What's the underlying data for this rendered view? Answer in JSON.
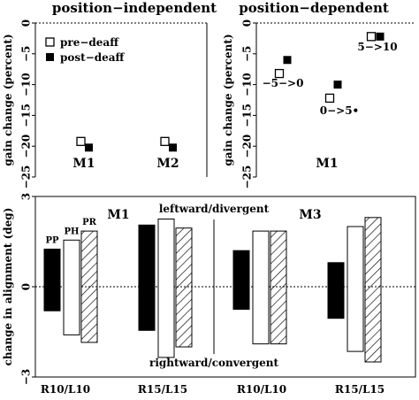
{
  "chart_data": [
    {
      "type": "scatter",
      "title": "position−independent",
      "ylabel": "gain change (percent)",
      "ylim": [
        -25,
        0
      ],
      "yticks": [
        0,
        -5,
        -10,
        -15,
        -20,
        -25
      ],
      "legend": {
        "placement": "top-left",
        "entries": [
          {
            "label": "pre−deaff",
            "marker": "open-square"
          },
          {
            "label": "post−deaff",
            "marker": "filled-square"
          }
        ]
      },
      "groups": [
        {
          "label": "M1",
          "pre": -19.3,
          "post": -20.3
        },
        {
          "label": "M2",
          "pre": -19.3,
          "post": -20.3
        }
      ]
    },
    {
      "type": "scatter",
      "title": "position−dependent",
      "ylabel": "gain change (percent)",
      "ylim": [
        -25,
        0
      ],
      "yticks": [
        0,
        -5,
        -10,
        -15,
        -20,
        -25
      ],
      "subject_label": "M1",
      "points": [
        {
          "label": "−5−>0",
          "pre": -8.2,
          "post": -6.0
        },
        {
          "label": "0−>5•",
          "pre": -12.2,
          "post": -10.0
        },
        {
          "label": "5−>10",
          "pre": -2.2,
          "post": -2.2
        }
      ]
    },
    {
      "type": "bar",
      "ylabel": "change in alignment (deg)",
      "ylim": [
        -3,
        3
      ],
      "yticks": [
        3,
        0,
        -3
      ],
      "categories": [
        "R10/L10",
        "R15/L15",
        "R10/L10",
        "R15/L15"
      ],
      "subjects": [
        "M1",
        "M3"
      ],
      "series": [
        {
          "name": "PP",
          "fill": "solid",
          "ranges": [
            [
              -0.8,
              1.25
            ],
            [
              -1.45,
              2.05
            ],
            [
              -0.75,
              1.2
            ],
            [
              -1.05,
              0.8
            ]
          ]
        },
        {
          "name": "PH",
          "fill": "open",
          "ranges": [
            [
              -1.6,
              1.55
            ],
            [
              -2.35,
              2.25
            ],
            [
              -1.9,
              1.85
            ],
            [
              -2.15,
              2.0
            ]
          ]
        },
        {
          "name": "PR",
          "fill": "hatched",
          "ranges": [
            [
              -1.85,
              1.85
            ],
            [
              -2.0,
              1.95
            ],
            [
              -1.9,
              1.85
            ],
            [
              -2.5,
              2.3
            ]
          ]
        }
      ],
      "annotations": {
        "top": "leftward/divergent",
        "bottom": "rightward/convergent"
      }
    }
  ]
}
